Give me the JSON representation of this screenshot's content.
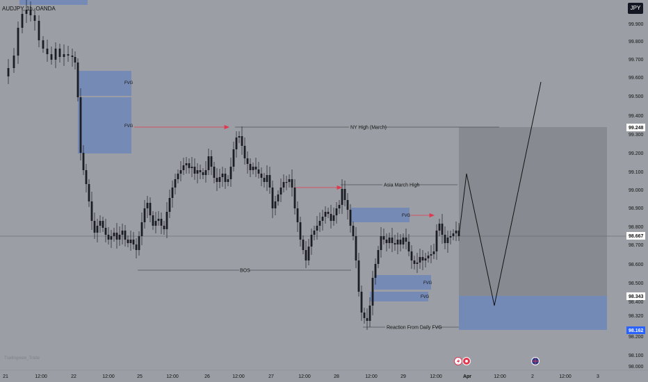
{
  "header": {
    "symbol_line": "AUDJPY, 1h, OANDA",
    "currency": "JPY"
  },
  "watermark": "Tradingview_Trade",
  "colors": {
    "background": "#9b9ea4",
    "candle": "#1b1d22",
    "fvg": "#6f86b8",
    "arrow": "#e0394f",
    "target_zone": "#8a8d94",
    "tag": "#ffffff",
    "price_label_bg": "#2962ff"
  },
  "price_axis": {
    "ticks": [
      "99.900",
      "99.800",
      "99.700",
      "99.600",
      "99.500",
      "99.400",
      "99.300",
      "99.200",
      "99.100",
      "99.000",
      "98.900",
      "98.800",
      "98.700",
      "98.600",
      "98.500",
      "98.400",
      "98.320",
      "98.200",
      "98.100",
      "98.000"
    ]
  },
  "price_labels": {
    "ny_high": "99.248",
    "current": "98.667",
    "zone_top": "98.343",
    "zone_bottom": "98.162"
  },
  "time_axis": {
    "labels": [
      "21",
      "12:00",
      "22",
      "12:00",
      "25",
      "12:00",
      "26",
      "12:00",
      "27",
      "12:00",
      "28",
      "12:00",
      "29",
      "12:00",
      "Apr",
      "12:00",
      "2",
      "12:00",
      "3"
    ]
  },
  "annotations": {
    "fvg_label": "FVG",
    "ny_high": "NY High (March)",
    "asia_high": "Asia March High",
    "bos": "BOS",
    "reaction": "Reaction From Daily FVG"
  },
  "event_icons": [
    "lightning-icon",
    "flag-icon",
    "au-flag-icon"
  ]
}
